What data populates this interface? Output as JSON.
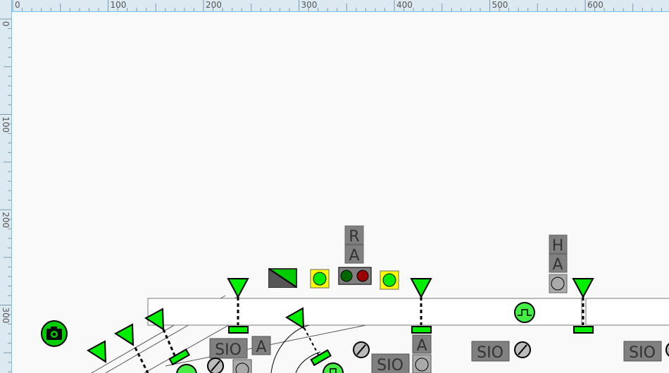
{
  "ruler": {
    "horizontal_labels": [
      "0",
      "100",
      "200",
      "300",
      "400",
      "500",
      "600"
    ],
    "vertical_labels": [
      "0",
      "100",
      "200",
      "300"
    ]
  },
  "route_labels": {
    "r": "R",
    "a1": "A",
    "h": "H",
    "a2": "A"
  },
  "sio_labels": [
    "SIO",
    "SIO",
    "SIO",
    "SIO"
  ],
  "a_labels": [
    "A",
    "A"
  ],
  "colors": {
    "signal": "#00ee00",
    "label_box": "#808080",
    "ruler": "#dce9f1",
    "lamp_red": "#990000",
    "lamp_green": "#006600",
    "yellow": "#ffff00"
  },
  "icons": [
    "camera-icon",
    "signal-triangle-icon",
    "track-circuit-pulse-icon",
    "slash-circle-icon",
    "plus-circle-icon"
  ]
}
